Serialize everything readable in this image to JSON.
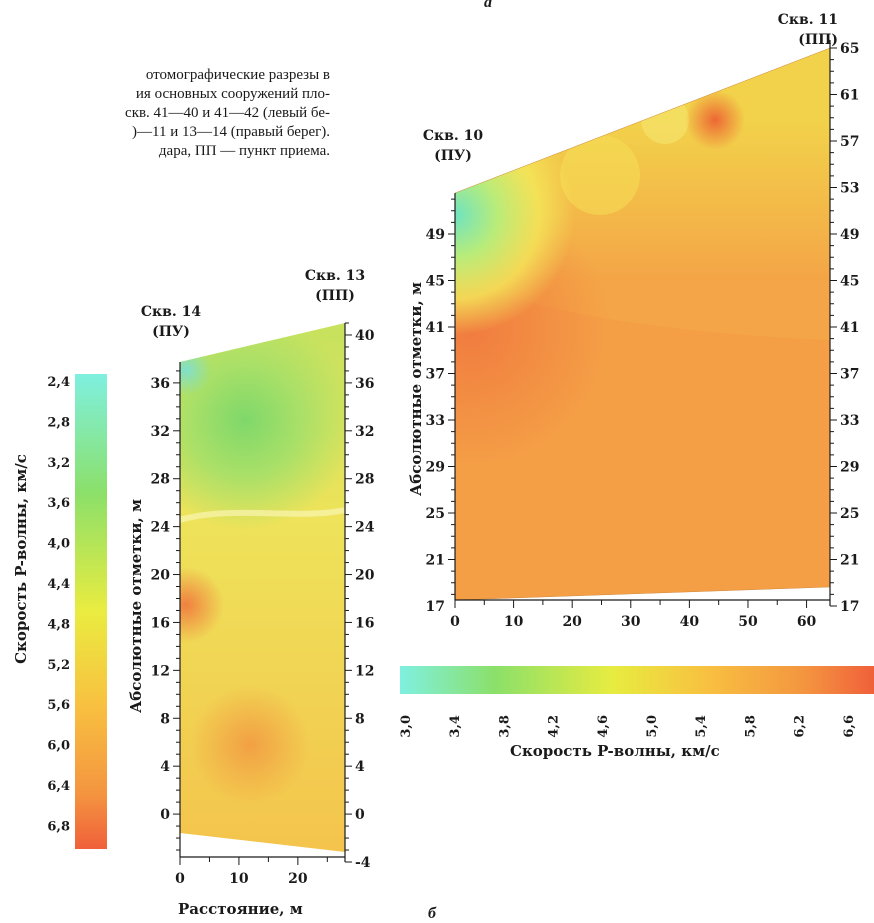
{
  "caption": {
    "lines": [
      "отомографические разрезы в",
      "ия основных сооружений пло-",
      "скв. 41—40 и 41—42 (левый бе-",
      ")—11 и 13—14 (правый берег).",
      "дара, ПП — пункт приема."
    ]
  },
  "panel_a": {
    "label": "а",
    "well_left_line1": "Скв. 10",
    "well_left_line2": "(ПУ)",
    "well_right_line1": "Скв. 11",
    "well_right_line2": "(ПП)",
    "ylabel": "Абсолютные отметки, м",
    "colorbar": {
      "title": "Скорость P-волны, км/с",
      "ticks": [
        "3,0",
        "3,4",
        "3,8",
        "4,2",
        "4,6",
        "5,0",
        "5,4",
        "5,8",
        "6,2",
        "6,6"
      ]
    }
  },
  "panel_b": {
    "label": "б",
    "well_left_line1": "Скв. 14",
    "well_left_line2": "(ПУ)",
    "well_right_line1": "Скв. 13",
    "well_right_line2": "(ПП)",
    "ylabel": "Абсолютные отметки, м",
    "xlabel": "Расстояние, м",
    "colorbar": {
      "title": "Скорость P-волны, км/с",
      "ticks": [
        "2,4",
        "2,8",
        "3,2",
        "3,6",
        "4,0",
        "4,4",
        "4,8",
        "5,2",
        "5,6",
        "6,0",
        "6,4",
        "6,8"
      ]
    }
  },
  "chart_data": [
    {
      "type": "heatmap",
      "panel": "а",
      "xlabel": "",
      "ylabel": "Абсолютные отметки, м",
      "x_ticks": [
        0,
        10,
        20,
        30,
        40,
        50,
        60
      ],
      "xlim": [
        0,
        64
      ],
      "y_ticks_left": [
        17,
        21,
        25,
        29,
        33,
        37,
        41,
        45,
        49
      ],
      "y_ticks_right": [
        17,
        21,
        25,
        29,
        33,
        37,
        41,
        45,
        49,
        53,
        57,
        61,
        65
      ],
      "ylim": [
        17,
        65
      ],
      "top_surface": [
        {
          "x": 0,
          "y": 52
        },
        {
          "x": 64,
          "y": 65
        }
      ],
      "bottom_surface": [
        {
          "x": 0,
          "y": 17.5
        },
        {
          "x": 64,
          "y": 18.5
        }
      ],
      "colorbar": {
        "label": "Скорость P-волны, км/с",
        "range": [
          3.0,
          6.6
        ],
        "orientation": "horizontal"
      },
      "notes": "low-velocity zone (about 3.4–4.2 km/s) near Скв. 10 at 45–52 m; most of section 5.4–6.2 km/s"
    },
    {
      "type": "heatmap",
      "panel": "б",
      "xlabel": "Расстояние, м",
      "ylabel": "Абсолютные отметки, м",
      "x_ticks": [
        0,
        10,
        20
      ],
      "xlim": [
        0,
        28
      ],
      "y_ticks_left": [
        0,
        4,
        8,
        12,
        16,
        20,
        24,
        28,
        32,
        36
      ],
      "y_ticks_right": [
        -4,
        0,
        4,
        8,
        12,
        16,
        20,
        24,
        28,
        32,
        36,
        40
      ],
      "ylim": [
        -4,
        41
      ],
      "top_surface": [
        {
          "x": 0,
          "y": 38
        },
        {
          "x": 28,
          "y": 41
        }
      ],
      "bottom_surface": [
        {
          "x": 0,
          "y": -2.5
        },
        {
          "x": 28,
          "y": -4
        }
      ],
      "colorbar": {
        "label": "Скорость P-волны, км/с",
        "range": [
          2.4,
          6.8
        ],
        "orientation": "vertical"
      },
      "notes": "low-velocity zone (about 3.2–4.4 km/s) at 26–37 m; most of section 4.8–5.6 km/s"
    }
  ]
}
